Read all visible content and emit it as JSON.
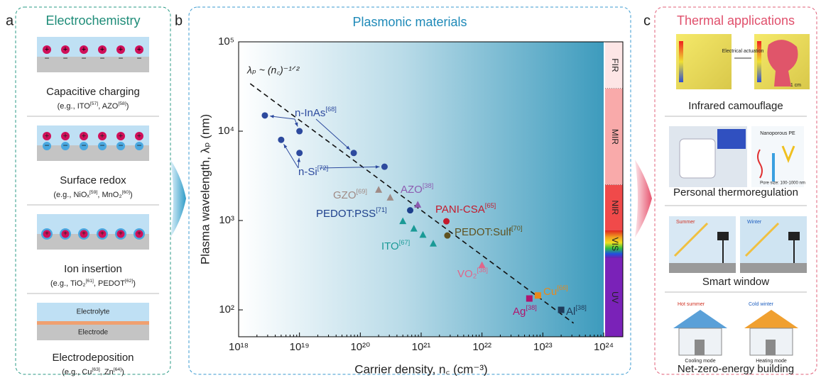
{
  "panel_a": {
    "letter": "a",
    "title": "Electrochemistry",
    "items": [
      {
        "label": "Capacitive charging",
        "example": "(e.g., ITO[57], AZO[58])"
      },
      {
        "label": "Surface redox",
        "example": "(e.g., NiOₓ[59], MnO₂[60])"
      },
      {
        "label": "Ion insertion",
        "example": "(e.g., TiO₂[61], PEDOT[62])"
      },
      {
        "label": "Electrodeposition",
        "example": "(e.g., Cu[63], Zn[64])",
        "layers": [
          "Electrolyte",
          "Electrode"
        ]
      }
    ]
  },
  "chart_data": {
    "type": "scatter",
    "letter": "b",
    "title": "Plasmonic materials",
    "x_label": "Carrier density, n꜀ (cm⁻³)",
    "y_label": "Plasma wavelength, λₚ (nm)",
    "log_x": true,
    "log_y": true,
    "xlim": [
      1e+18,
      1e+24
    ],
    "ylim": [
      50,
      100000
    ],
    "xticks": [
      {
        "value": 1e+18,
        "label": "10¹⁸"
      },
      {
        "value": 1e+19,
        "label": "10¹⁹"
      },
      {
        "value": 1e+20,
        "label": "10²⁰"
      },
      {
        "value": 1e+21,
        "label": "10²¹"
      },
      {
        "value": 1e+22,
        "label": "10²²"
      },
      {
        "value": 1e+23,
        "label": "10²³"
      },
      {
        "value": 1e+24,
        "label": "10²⁴"
      }
    ],
    "yticks": [
      {
        "value": 100,
        "label": "10²"
      },
      {
        "value": 1000,
        "label": "10³"
      },
      {
        "value": 10000,
        "label": "10⁴"
      },
      {
        "value": 100000,
        "label": "10⁵"
      }
    ],
    "fit_line": {
      "label": "λₚ ~ (n꜀)⁻¹ᐟ²",
      "x": [
        1.55e+18,
        3.2e+23
      ],
      "y": [
        34000,
        71
      ]
    },
    "bands": [
      {
        "label": "FIR",
        "range": [
          30000,
          100000
        ]
      },
      {
        "label": "MIR",
        "range": [
          2500,
          30000
        ]
      },
      {
        "label": "NIR",
        "range": [
          780,
          2500
        ]
      },
      {
        "label": "VIS",
        "range": [
          380,
          780
        ]
      },
      {
        "label": "UV",
        "range": [
          50,
          380
        ]
      }
    ],
    "series": [
      {
        "name": "n-InAs[68]",
        "color": "#2d4a9e",
        "marker": "circle",
        "x": [
          2.7e+18,
          1e+19,
          7.8e+19
        ],
        "values": [
          15000,
          10000,
          5700
        ]
      },
      {
        "name": "n-Si[72]",
        "color": "#2d4a9e",
        "marker": "circle",
        "x": [
          5e+18,
          1e+19,
          2.5e+20
        ],
        "values": [
          8000,
          5700,
          4000
        ]
      },
      {
        "name": "GZO[69]",
        "color": "#a08b86",
        "marker": "triangle",
        "x": [
          2e+20,
          3.1e+20
        ],
        "values": [
          2200,
          1800
        ]
      },
      {
        "name": "AZO[38]",
        "color": "#8c5bb0",
        "marker": "triangle",
        "x": [
          8.8e+20
        ],
        "values": [
          1500
        ]
      },
      {
        "name": "PEDOT:PSS[71]",
        "color": "#1d3f8c",
        "marker": "circle",
        "x": [
          6.6e+20
        ],
        "values": [
          1300
        ]
      },
      {
        "name": "PANI-CSA[65]",
        "color": "#c41a2c",
        "marker": "circle",
        "x": [
          2.6e+21
        ],
        "values": [
          980
        ]
      },
      {
        "name": "ITO[67]",
        "color": "#1a9a96",
        "marker": "triangle",
        "x": [
          5e+20,
          7.6e+20,
          1.07e+21,
          1.58e+21
        ],
        "values": [
          980,
          810,
          690,
          550
        ]
      },
      {
        "name": "PEDOT:Sulf[70]",
        "color": "#5f5220",
        "marker": "circle",
        "x": [
          2.7e+21
        ],
        "values": [
          680
        ]
      },
      {
        "name": "VO₂[38]",
        "color": "#e0668a",
        "marker": "triangle",
        "x": [
          1e+22
        ],
        "values": [
          316
        ]
      },
      {
        "name": "Cu[66]",
        "color": "#e8881c",
        "marker": "square",
        "x": [
          8.3e+22
        ],
        "values": [
          145
        ]
      },
      {
        "name": "Ag[38]",
        "color": "#b0156e",
        "marker": "square",
        "x": [
          6e+22
        ],
        "values": [
          134
        ]
      },
      {
        "name": "Al[38]",
        "color": "#1f3b5a",
        "marker": "square",
        "x": [
          2e+23
        ],
        "values": [
          100
        ]
      }
    ]
  },
  "panel_c": {
    "letter": "c",
    "title": "Thermal applications",
    "items": [
      {
        "label": "Infrared camouflage",
        "notes": [
          "Electrical actuation",
          "1 cm"
        ]
      },
      {
        "label": "Personal thermoregulation",
        "notes": [
          "Nanoporous PE",
          "Pore size: 100-1000 nm"
        ]
      },
      {
        "label": "Smart window",
        "notes": [
          "Summer",
          "Winter"
        ]
      },
      {
        "label": "Net-zero-energy building",
        "notes": [
          "Hot summer",
          "Cold winter",
          "Cooling mode",
          "Heating mode"
        ]
      }
    ]
  }
}
